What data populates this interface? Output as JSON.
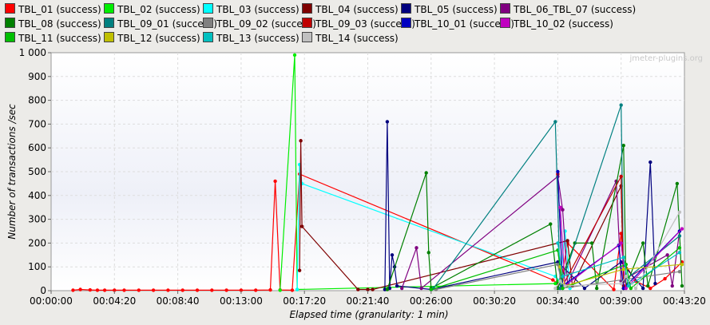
{
  "chart_data": {
    "type": "line",
    "title": "",
    "xlabel": "Elapsed time (granularity: 1 min)",
    "ylabel": "Number of transactions /sec",
    "ylim": [
      0,
      1000
    ],
    "y_ticks": [
      "0",
      "100",
      "200",
      "300",
      "400",
      "500",
      "600",
      "700",
      "800",
      "900",
      "1 000"
    ],
    "x_ticks": [
      "00:00:00",
      "00:04:20",
      "00:08:40",
      "00:13:00",
      "00:17:20",
      "00:21:40",
      "00:26:00",
      "00:30:20",
      "00:34:40",
      "00:39:00",
      "00:43:20"
    ],
    "xlim_seconds": [
      0,
      2600
    ],
    "grid": true,
    "legend_position": "top",
    "watermark": "jmeter-plugins.org",
    "series": [
      {
        "name": "TBL_01 (success)",
        "color": "#ff0000",
        "points": [
          [
            "00:01:30",
            2
          ],
          [
            "00:02:00",
            5
          ],
          [
            "00:02:40",
            3
          ],
          [
            "00:03:10",
            2
          ],
          [
            "00:03:40",
            2
          ],
          [
            "00:04:20",
            2
          ],
          [
            "00:05:00",
            2
          ],
          [
            "00:06:00",
            2
          ],
          [
            "00:07:00",
            2
          ],
          [
            "00:08:00",
            2
          ],
          [
            "00:09:00",
            2
          ],
          [
            "00:10:00",
            2
          ],
          [
            "00:11:00",
            2
          ],
          [
            "00:12:00",
            2
          ],
          [
            "00:13:00",
            2
          ],
          [
            "00:14:00",
            2
          ],
          [
            "00:15:00",
            3
          ],
          [
            "00:15:20",
            460
          ],
          [
            "00:15:40",
            3
          ],
          [
            "00:16:30",
            2
          ],
          [
            "00:17:00",
            490
          ],
          [
            "00:34:20",
            45
          ],
          [
            "00:34:40",
            30
          ],
          [
            "00:35:00",
            80
          ],
          [
            "00:35:20",
            200
          ],
          [
            "00:38:30",
            5
          ],
          [
            "00:39:00",
            240
          ],
          [
            "00:39:10",
            120
          ],
          [
            "00:40:00",
            40
          ],
          [
            "00:41:00",
            10
          ],
          [
            "00:42:00",
            50
          ],
          [
            "00:43:10",
            120
          ]
        ]
      },
      {
        "name": "TBL_02 (success)",
        "color": "#00ee00",
        "points": [
          [
            "00:15:40",
            2
          ],
          [
            "00:16:40",
            990
          ],
          [
            "00:16:50",
            5
          ],
          [
            "00:34:30",
            30
          ],
          [
            "00:34:40",
            40
          ]
        ]
      },
      {
        "name": "TBL_03 (success)",
        "color": "#00ffff",
        "points": [
          [
            "00:16:50",
            5
          ],
          [
            "00:17:00",
            530
          ],
          [
            "00:17:10",
            450
          ],
          [
            "00:34:30",
            60
          ],
          [
            "00:34:50",
            40
          ],
          [
            "00:35:10",
            250
          ],
          [
            "00:35:30",
            10
          ]
        ]
      },
      {
        "name": "TBL_04 (success)",
        "color": "#7f0000",
        "points": [
          [
            "00:17:00",
            85
          ],
          [
            "00:17:05",
            630
          ],
          [
            "00:17:10",
            270
          ],
          [
            "00:21:00",
            5
          ],
          [
            "00:21:40",
            5
          ],
          [
            "00:22:00",
            5
          ],
          [
            "00:35:20",
            210
          ],
          [
            "00:35:40",
            20
          ],
          [
            "00:39:00",
            440
          ],
          [
            "00:39:10",
            10
          ]
        ]
      },
      {
        "name": "TBL_05 (success)",
        "color": "#00007f",
        "points": [
          [
            "00:22:50",
            5
          ],
          [
            "00:23:00",
            710
          ],
          [
            "00:23:10",
            10
          ],
          [
            "00:23:20",
            150
          ],
          [
            "00:23:30",
            100
          ],
          [
            "00:23:40",
            20
          ],
          [
            "00:26:00",
            5
          ],
          [
            "00:34:40",
            120
          ],
          [
            "00:36:30",
            10
          ],
          [
            "00:39:00",
            120
          ],
          [
            "00:40:30",
            10
          ],
          [
            "00:41:00",
            540
          ],
          [
            "00:41:20",
            30
          ]
        ]
      },
      {
        "name": "TBL_06_TBL_07 (success)",
        "color": "#800080",
        "points": [
          [
            "00:24:00",
            10
          ],
          [
            "00:25:00",
            180
          ],
          [
            "00:25:20",
            10
          ],
          [
            "00:34:40",
            480
          ],
          [
            "00:35:00",
            340
          ],
          [
            "00:35:20",
            30
          ],
          [
            "00:38:40",
            460
          ],
          [
            "00:39:00",
            40
          ],
          [
            "00:42:10",
            150
          ],
          [
            "00:42:30",
            20
          ],
          [
            "00:43:00",
            250
          ]
        ]
      },
      {
        "name": "TBL_08 (success)",
        "color": "#008000",
        "points": [
          [
            "00:23:00",
            5
          ],
          [
            "00:25:40",
            495
          ],
          [
            "00:25:50",
            160
          ],
          [
            "00:26:00",
            10
          ],
          [
            "00:34:10",
            280
          ],
          [
            "00:34:40",
            10
          ],
          [
            "00:35:50",
            200
          ],
          [
            "00:37:00",
            200
          ],
          [
            "00:37:20",
            10
          ],
          [
            "00:39:10",
            610
          ],
          [
            "00:39:20",
            20
          ],
          [
            "00:40:30",
            200
          ],
          [
            "00:40:50",
            20
          ],
          [
            "00:42:50",
            450
          ],
          [
            "00:43:10",
            20
          ]
        ]
      },
      {
        "name": "TBL_09_01 (success)",
        "color": "#008080",
        "points": [
          [
            "00:26:10",
            10
          ],
          [
            "00:34:30",
            710
          ],
          [
            "00:34:50",
            10
          ],
          [
            "00:39:00",
            780
          ],
          [
            "00:39:10",
            40
          ],
          [
            "00:43:00",
            230
          ]
        ]
      },
      {
        "name": "TBL_09_02 (success)",
        "color": "#808080",
        "points": [
          [
            "00:26:20",
            5
          ],
          [
            "00:34:40",
            110
          ],
          [
            "00:35:00",
            10
          ],
          [
            "00:43:00",
            80
          ]
        ]
      },
      {
        "name": "TBL_09_03 (success)",
        "color": "#c00000",
        "points": [
          [
            "00:34:40",
            490
          ],
          [
            "00:35:00",
            20
          ],
          [
            "00:39:00",
            480
          ],
          [
            "00:39:10",
            20
          ]
        ]
      },
      {
        "name": "TBL_10_01 (success)",
        "color": "#0000c0",
        "points": [
          [
            "00:34:40",
            500
          ],
          [
            "00:35:00",
            20
          ],
          [
            "00:38:50",
            190
          ],
          [
            "00:39:10",
            10
          ],
          [
            "00:43:00",
            250
          ]
        ]
      },
      {
        "name": "TBL_10_02 (success)",
        "color": "#c000c0",
        "points": [
          [
            "00:34:50",
            350
          ],
          [
            "00:35:10",
            20
          ],
          [
            "00:39:00",
            200
          ],
          [
            "00:39:20",
            10
          ],
          [
            "00:43:10",
            260
          ]
        ]
      },
      {
        "name": "TBL_11 (success)",
        "color": "#00bf00",
        "points": [
          [
            "00:26:00",
            5
          ],
          [
            "00:34:40",
            170
          ],
          [
            "00:35:00",
            10
          ],
          [
            "00:39:20",
            110
          ],
          [
            "00:39:40",
            10
          ],
          [
            "00:43:00",
            180
          ]
        ]
      },
      {
        "name": "TBL_12 (success)",
        "color": "#c0c000",
        "points": [
          [
            "00:34:50",
            100
          ],
          [
            "00:35:10",
            20
          ],
          [
            "00:39:10",
            90
          ],
          [
            "00:43:10",
            110
          ]
        ]
      },
      {
        "name": "TBL_13 (success)",
        "color": "#00c0c0",
        "points": [
          [
            "00:34:40",
            200
          ],
          [
            "00:35:00",
            60
          ],
          [
            "00:39:10",
            140
          ],
          [
            "00:39:30",
            20
          ],
          [
            "00:43:00",
            160
          ]
        ]
      },
      {
        "name": "TBL_14 (success)",
        "color": "#c0c0c0",
        "points": [
          [
            "00:34:30",
            10
          ],
          [
            "00:34:50",
            40
          ],
          [
            "00:35:10",
            20
          ],
          [
            "00:39:00",
            30
          ],
          [
            "00:39:20",
            60
          ],
          [
            "00:40:00",
            10
          ],
          [
            "00:43:00",
            330
          ]
        ]
      }
    ]
  }
}
